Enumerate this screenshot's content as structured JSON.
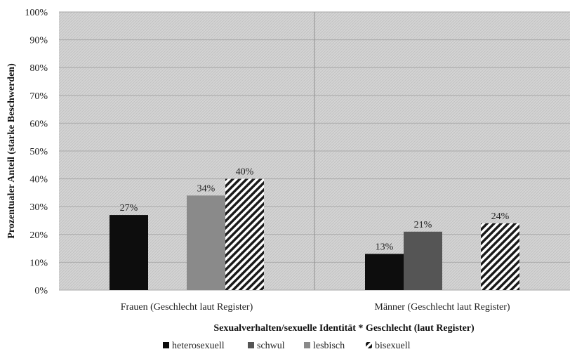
{
  "chart_data": {
    "type": "bar",
    "categories": [
      "Frauen (Geschlecht laut Register)",
      "Männer (Geschlecht laut Register)"
    ],
    "series": [
      {
        "name": "heterosexuell",
        "values": [
          27,
          13
        ],
        "labels": [
          "27%",
          "13%"
        ],
        "color": "#0d0d0d",
        "pattern": "solid"
      },
      {
        "name": "schwul",
        "values": [
          null,
          21
        ],
        "labels": [
          "",
          "21%"
        ],
        "color": "#555555",
        "pattern": "solid"
      },
      {
        "name": "lesbisch",
        "values": [
          34,
          null
        ],
        "labels": [
          "34%",
          ""
        ],
        "color": "#8a8a8a",
        "pattern": "solid"
      },
      {
        "name": "bisexuell",
        "values": [
          40,
          24
        ],
        "labels": [
          "40%",
          "24%"
        ],
        "color": "#1a1a1a",
        "pattern": "diagonal-hatch"
      }
    ],
    "xlabel": "Sexualverhalten/sexuelle Identität * Geschlecht (laut Register)",
    "ylabel": "Prozentualer Anteil (starke Beschwerden)",
    "ylim": [
      0,
      100
    ],
    "yticks": [
      "0%",
      "10%",
      "20%",
      "30%",
      "40%",
      "50%",
      "60%",
      "70%",
      "80%",
      "90%",
      "100%"
    ],
    "grid": true,
    "legend_position": "bottom",
    "background": "#dcdcdc"
  }
}
